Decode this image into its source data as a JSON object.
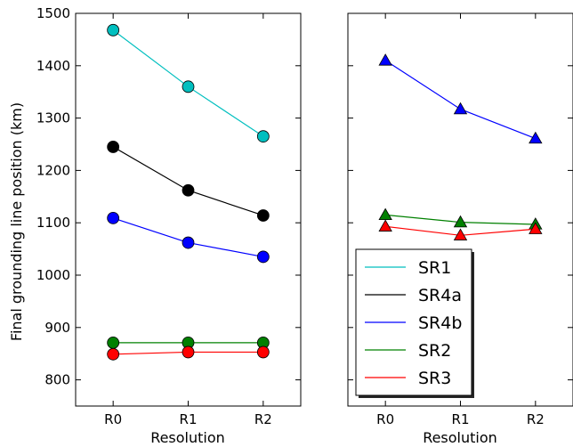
{
  "chart_data": [
    {
      "type": "line",
      "panel": "left",
      "categories": [
        "R0",
        "R1",
        "R2"
      ],
      "xlabel": "Resolution",
      "ylabel": "Final grounding line position (km)",
      "ylim": [
        750,
        1500
      ],
      "yticks": [
        800,
        900,
        1000,
        1100,
        1200,
        1300,
        1400,
        1500
      ],
      "grid": false,
      "series": [
        {
          "name": "SR1",
          "marker": "circle",
          "color": "#00bfbf",
          "values": [
            1468,
            1360,
            1265
          ]
        },
        {
          "name": "SR4a",
          "marker": "circle",
          "color": "#000000",
          "values": [
            1245,
            1162,
            1114
          ]
        },
        {
          "name": "SR4b",
          "marker": "circle",
          "color": "#0000ff",
          "values": [
            1109,
            1062,
            1035
          ]
        },
        {
          "name": "SR2",
          "marker": "circle",
          "color": "#008000",
          "values": [
            871,
            871,
            871
          ]
        },
        {
          "name": "SR3",
          "marker": "circle",
          "color": "#ff0000",
          "values": [
            849,
            853,
            853
          ]
        }
      ]
    },
    {
      "type": "line",
      "panel": "right",
      "categories": [
        "R0",
        "R1",
        "R2"
      ],
      "xlabel": "Resolution",
      "ylim": [
        750,
        1500
      ],
      "grid": false,
      "legend_position": "lower-left",
      "series": [
        {
          "name": "SR4b",
          "marker": "triangle",
          "color": "#0000ff",
          "values": [
            1410,
            1317,
            1261
          ]
        },
        {
          "name": "SR2",
          "marker": "triangle",
          "color": "#008000",
          "values": [
            1115,
            1101,
            1097
          ]
        },
        {
          "name": "SR3",
          "marker": "triangle",
          "color": "#ff0000",
          "values": [
            1093,
            1076,
            1088
          ]
        }
      ]
    }
  ],
  "legend": {
    "entries": [
      {
        "label": "SR1",
        "color": "#00bfbf"
      },
      {
        "label": "SR4a",
        "color": "#000000"
      },
      {
        "label": "SR4b",
        "color": "#0000ff"
      },
      {
        "label": "SR2",
        "color": "#008000"
      },
      {
        "label": "SR3",
        "color": "#ff0000"
      }
    ]
  }
}
